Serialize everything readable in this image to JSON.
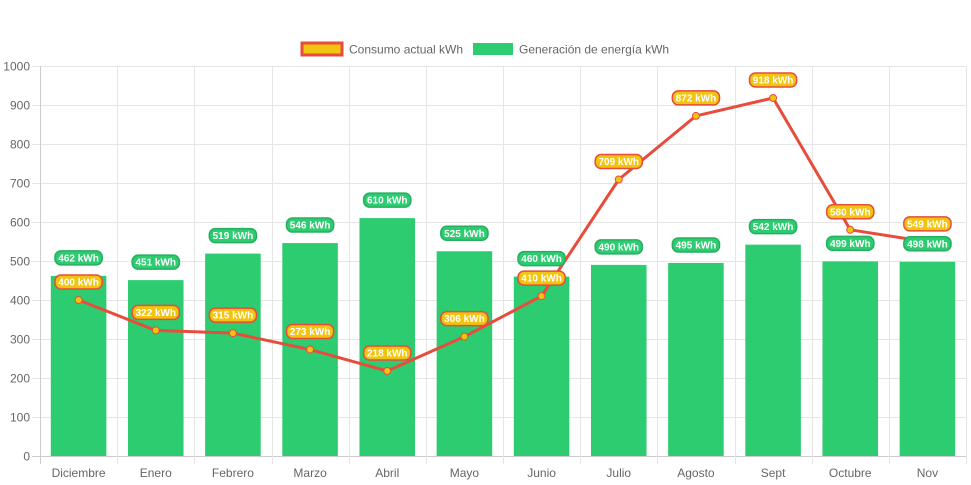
{
  "chart_data": {
    "type": "bar",
    "title": "",
    "xlabel": "",
    "ylabel": "",
    "ylim": [
      0,
      1000
    ],
    "yticks": [
      0,
      100,
      200,
      300,
      400,
      500,
      600,
      700,
      800,
      900,
      1000
    ],
    "grid": true,
    "legend_position": "top-center",
    "categories": [
      "Diciembre",
      "Enero",
      "Febrero",
      "Marzo",
      "Abril",
      "Mayo",
      "Junio",
      "Julio",
      "Agosto",
      "Sept",
      "Octubre",
      "Nov"
    ],
    "unit_suffix": " kWh",
    "series": [
      {
        "name": "Consumo actual kWh",
        "type": "line",
        "color": "#e74c3c",
        "point_color": "#f1c40f",
        "label_bg": "#f1c40f",
        "label_border": "#e74c3c",
        "values": [
          400,
          322,
          315,
          273,
          218,
          306,
          410,
          709,
          872,
          918,
          580,
          549
        ]
      },
      {
        "name": "Generación de energía kWh",
        "type": "bar",
        "color": "#2ecc71",
        "label_bg": "#2ecc71",
        "label_border": "#27ae60",
        "values": [
          462,
          451,
          519,
          546,
          610,
          525,
          460,
          490,
          495,
          542,
          499,
          498
        ]
      }
    ]
  }
}
